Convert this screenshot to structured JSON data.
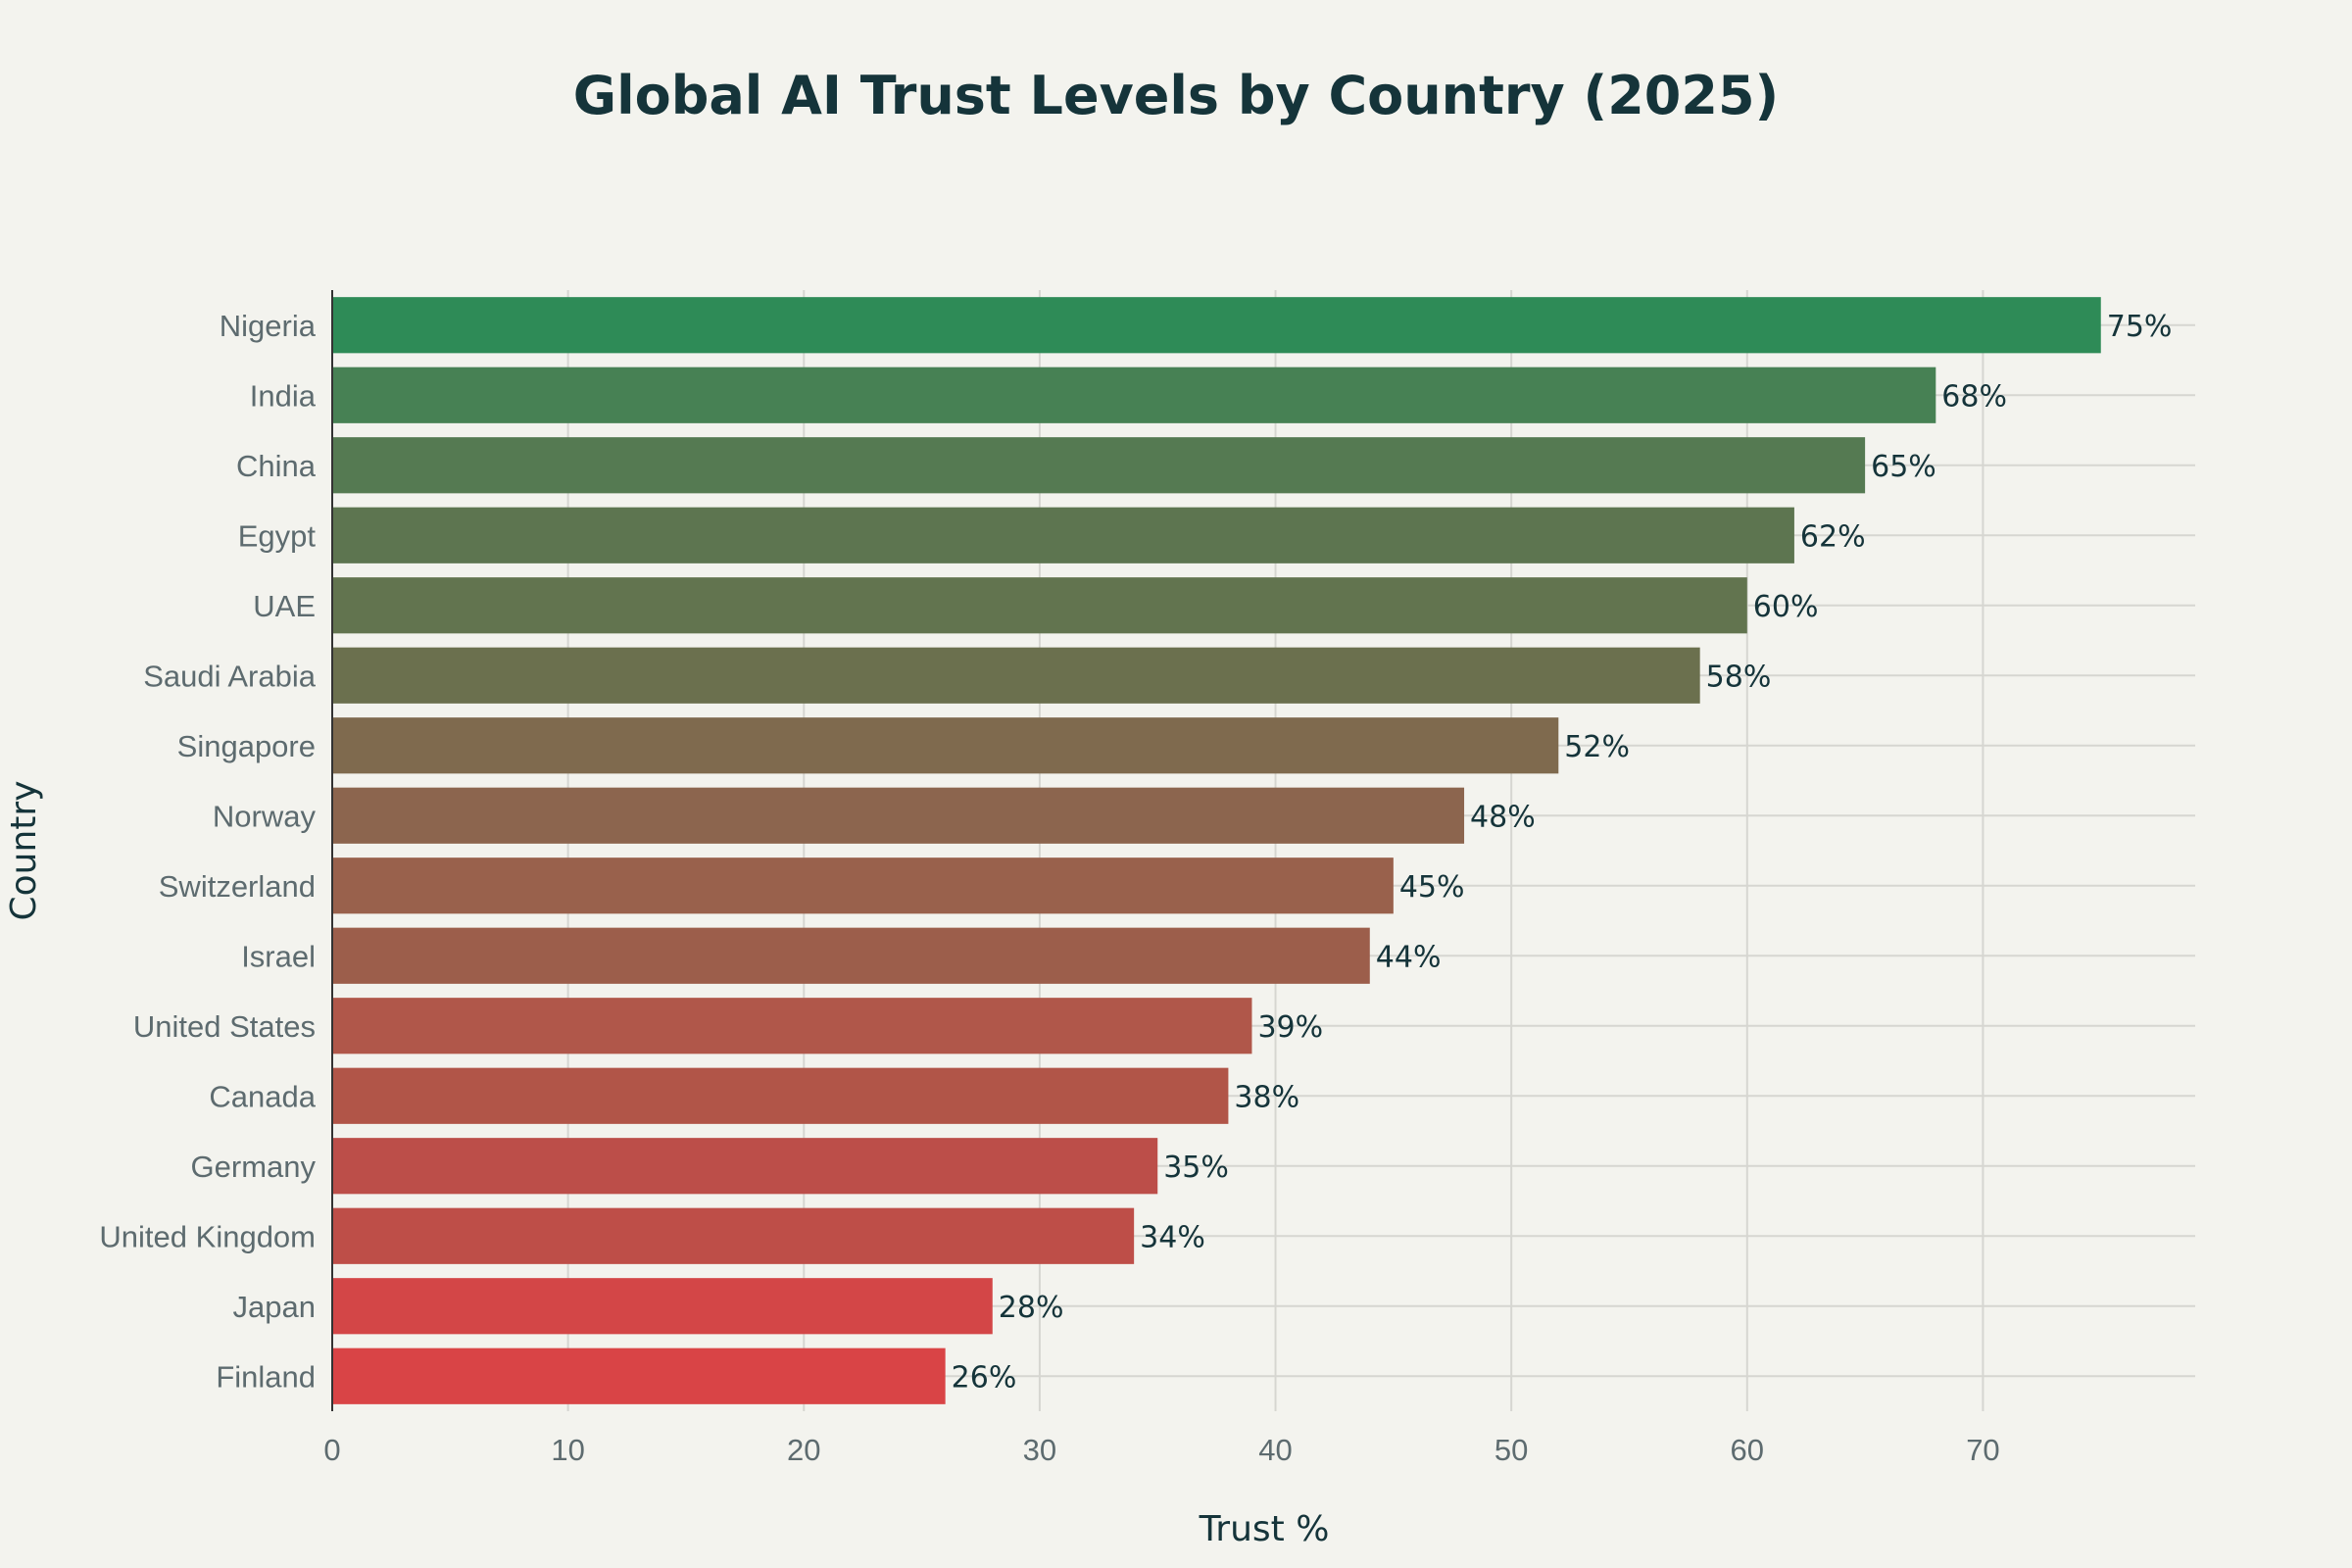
{
  "chart_data": {
    "type": "bar",
    "orientation": "horizontal",
    "title": "Global AI Trust Levels by Country (2025)",
    "xlabel": "Trust %",
    "ylabel": "Country",
    "xlim": [
      0,
      79
    ],
    "xticks": [
      0,
      10,
      20,
      30,
      40,
      50,
      60,
      70
    ],
    "grid": true,
    "categories": [
      "Nigeria",
      "India",
      "China",
      "Egypt",
      "UAE",
      "Saudi Arabia",
      "Singapore",
      "Norway",
      "Switzerland",
      "Israel",
      "United States",
      "Canada",
      "Germany",
      "United Kingdom",
      "Japan",
      "Finland"
    ],
    "values": [
      75,
      68,
      65,
      62,
      60,
      58,
      52,
      48,
      45,
      44,
      39,
      38,
      35,
      34,
      28,
      26
    ],
    "data_labels": [
      "75%",
      "68%",
      "65%",
      "62%",
      "60%",
      "58%",
      "52%",
      "48%",
      "45%",
      "44%",
      "39%",
      "38%",
      "35%",
      "34%",
      "28%",
      "26%"
    ],
    "colors": [
      "#2e8b57",
      "#478154",
      "#557a52",
      "#5d7550",
      "#62744f",
      "#6b704e",
      "#7f6a4e",
      "#8c654e",
      "#99614c",
      "#9c5e4b",
      "#b0574a",
      "#b15548",
      "#bc4e49",
      "#be4e48",
      "#d34647",
      "#d94446"
    ]
  }
}
